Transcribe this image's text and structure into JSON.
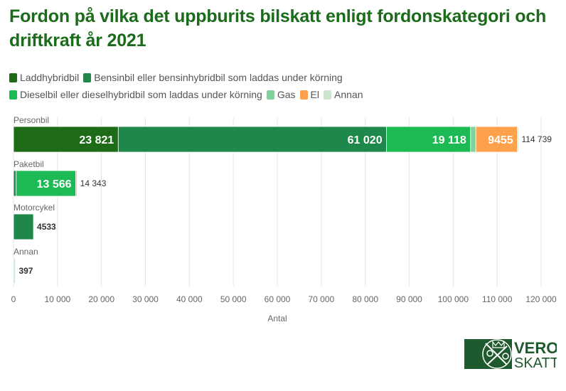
{
  "title": "Fordon på vilka det uppburits bilskatt enligt fordonskategori och driftkraft år 2021",
  "chart_data": {
    "type": "bar",
    "orientation": "horizontal",
    "stacked": true,
    "title": "Fordon på vilka det uppburits bilskatt enligt fordonskategori och driftkraft år 2021",
    "xlabel": "Antal",
    "ylabel": "",
    "xlim": [
      0,
      120000
    ],
    "xticks": [
      0,
      10000,
      20000,
      30000,
      40000,
      50000,
      60000,
      70000,
      80000,
      90000,
      100000,
      110000,
      120000
    ],
    "xtick_labels": [
      "0",
      "10 000",
      "20 000",
      "30 000",
      "40 000",
      "50 000",
      "60 000",
      "70 000",
      "80 000",
      "90 000",
      "100 000",
      "110 000",
      "120 000"
    ],
    "grid": true,
    "legend_position": "top-left",
    "categories": [
      "Personbil",
      "Paketbil",
      "Motorcykel",
      "Annan"
    ],
    "totals": [
      114739,
      14343,
      4533,
      397
    ],
    "total_labels": [
      "114 739",
      "14 343",
      "4533",
      "397"
    ],
    "series": [
      {
        "name": "Laddhybridbil",
        "color": "#1d6b16",
        "values": [
          23821,
          0,
          0,
          0
        ],
        "labels": [
          "23 821",
          "",
          "",
          ""
        ]
      },
      {
        "name": "Bensinbil eller bensinhybridbil som laddas under körning",
        "color": "#1e874a",
        "values": [
          61020,
          600,
          4533,
          0
        ],
        "labels": [
          "61 020",
          "",
          "",
          ""
        ]
      },
      {
        "name": "Dieselbil eller dieselhybridbil som laddas under körning",
        "color": "#1db954",
        "values": [
          19118,
          13566,
          0,
          0
        ],
        "labels": [
          "19 118",
          "13 566",
          "",
          ""
        ]
      },
      {
        "name": "Gas",
        "color": "#7fd39b",
        "values": [
          1200,
          60,
          0,
          0
        ],
        "labels": [
          "",
          "",
          "",
          ""
        ]
      },
      {
        "name": "El",
        "color": "#ffa04a",
        "values": [
          9455,
          117,
          0,
          0
        ],
        "labels": [
          "9455",
          "",
          "",
          ""
        ]
      },
      {
        "name": "Annan",
        "color": "#c9e6cf",
        "values": [
          125,
          0,
          0,
          397
        ],
        "labels": [
          "",
          "",
          "",
          ""
        ]
      }
    ]
  },
  "logo": {
    "line1": "VERO",
    "line2": "SKATT"
  }
}
